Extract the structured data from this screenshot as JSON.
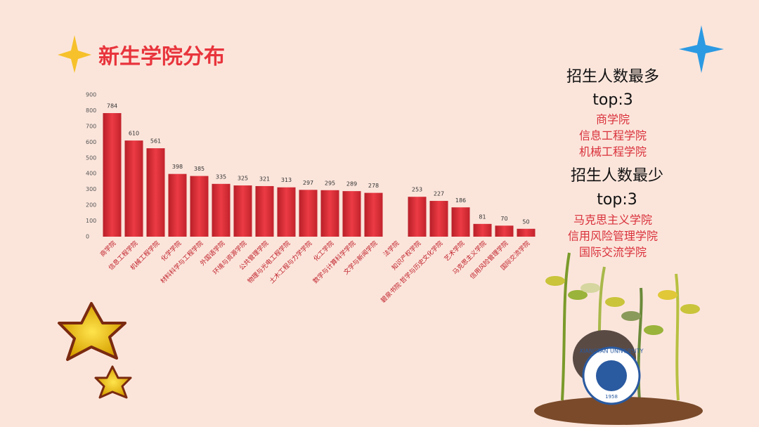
{
  "chart_data": {
    "type": "bar",
    "title": "新生学院分布",
    "categories": [
      "商学院",
      "信息工程学院",
      "机械工程学院",
      "化学学院",
      "材料科学与工程学院",
      "外国语学院",
      "环境与资源学院",
      "公共管理学院",
      "物理与光电工程学院",
      "土木工程与力学学院",
      "化工学院",
      "数学与计算科学学院",
      "文学与新闻学院",
      "法学院",
      "知识产权学院",
      "碧泉书院·哲学与历史文化学院",
      "艺术学院",
      "马克思主义学院",
      "信用风险管理学院",
      "国际交流学院"
    ],
    "values": [
      784,
      610,
      561,
      398,
      385,
      335,
      325,
      321,
      313,
      297,
      295,
      289,
      278,
      null,
      253,
      227,
      186,
      81,
      70,
      50
    ],
    "color": "#e2303a",
    "ylim": [
      0,
      900
    ],
    "yticks": [
      0,
      100,
      200,
      300,
      400,
      500,
      600,
      700,
      800,
      900
    ]
  },
  "side": {
    "most_heading": "招生人数最多",
    "most_top": "top:3",
    "most": [
      "商学院",
      "信息工程学院",
      "机械工程学院"
    ],
    "least_heading": "招生人数最少",
    "least_top": "top:3",
    "least": [
      "马克思主义学院",
      "信用风险管理学院",
      "国际交流学院"
    ]
  },
  "logo": {
    "name": "XIANGTAN UNIVERSITY",
    "year": "1958"
  }
}
